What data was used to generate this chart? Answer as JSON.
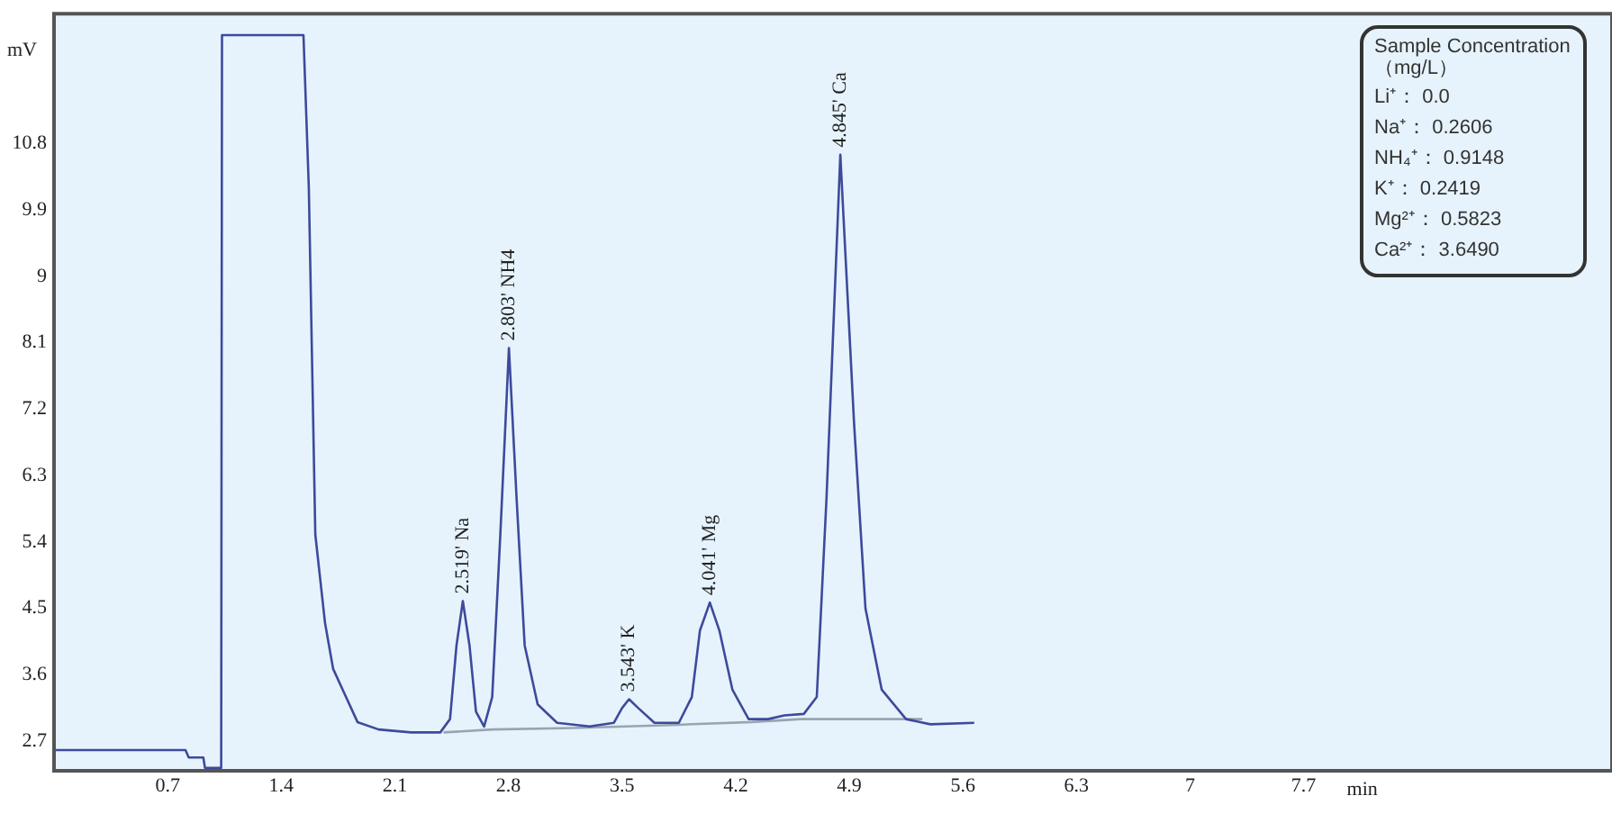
{
  "chart_data": {
    "type": "line",
    "xlabel": "min",
    "ylabel": "mV",
    "xlim": [
      0,
      9.6
    ],
    "ylim": [
      2.3,
      12.56
    ],
    "xticks": [
      0.7,
      1.4,
      2.1,
      2.8,
      3.5,
      4.2,
      4.9,
      5.6,
      6.3,
      7,
      7.7
    ],
    "yticks": [
      2.7,
      3.6,
      4.5,
      5.4,
      6.3,
      7.2,
      8.1,
      9,
      9.9,
      10.8
    ],
    "series": [
      {
        "color": "#3d4a9c",
        "x": [
          0,
          0.81,
          0.83,
          0.92,
          0.93,
          1.03,
          1.035,
          1.537,
          1.57,
          1.61,
          1.67,
          1.72,
          1.87,
          2.0,
          2.2,
          2.38,
          2.44,
          2.48,
          2.519,
          2.56,
          2.6,
          2.65,
          2.7,
          2.75,
          2.803,
          2.85,
          2.9,
          2.98,
          3.1,
          3.3,
          3.45,
          3.5,
          3.543,
          3.6,
          3.7,
          3.85,
          3.93,
          3.98,
          4.041,
          4.1,
          4.18,
          4.28,
          4.4,
          4.5,
          4.62,
          4.7,
          4.76,
          4.845,
          4.93,
          5.0,
          5.1,
          5.25,
          5.4,
          5.67
        ],
        "values": [
          2.58,
          2.58,
          2.48,
          2.48,
          2.34,
          2.34,
          12.27,
          12.27,
          10.2,
          5.5,
          4.3,
          3.68,
          2.96,
          2.86,
          2.82,
          2.82,
          3.0,
          4.0,
          4.6,
          4.0,
          3.1,
          2.9,
          3.3,
          5.5,
          8.03,
          6.0,
          4.0,
          3.2,
          2.95,
          2.9,
          2.95,
          3.15,
          3.27,
          3.15,
          2.95,
          2.95,
          3.3,
          4.2,
          4.58,
          4.2,
          3.4,
          3.0,
          3.0,
          3.05,
          3.07,
          3.3,
          6.0,
          10.65,
          7.0,
          4.5,
          3.4,
          3.0,
          2.93,
          2.95
        ]
      },
      {
        "color": "#9aa4b0",
        "x": [
          2.4,
          2.7,
          3.2,
          3.8,
          4.3,
          4.6,
          5.35
        ],
        "values": [
          2.82,
          2.86,
          2.88,
          2.92,
          2.96,
          3.0,
          3.0
        ]
      }
    ],
    "annotations": [
      {
        "text": "2.519' Na",
        "x": 2.519,
        "y": 4.6
      },
      {
        "text": "2.803' NH4",
        "x": 2.803,
        "y": 8.03
      },
      {
        "text": "3.543' K",
        "x": 3.543,
        "y": 3.27
      },
      {
        "text": "4.041' Mg",
        "x": 4.041,
        "y": 4.58
      },
      {
        "text": "4.845' Ca",
        "x": 4.845,
        "y": 10.65
      },
      "Sample Concentration （mg/L）",
      "Li⁺： 0.0",
      "Na⁺： 0.2606",
      "NH₄⁺： 0.9148",
      "K⁺： 0.2419",
      "Mg²⁺： 0.5823",
      "Ca²⁺： 3.6490"
    ]
  }
}
